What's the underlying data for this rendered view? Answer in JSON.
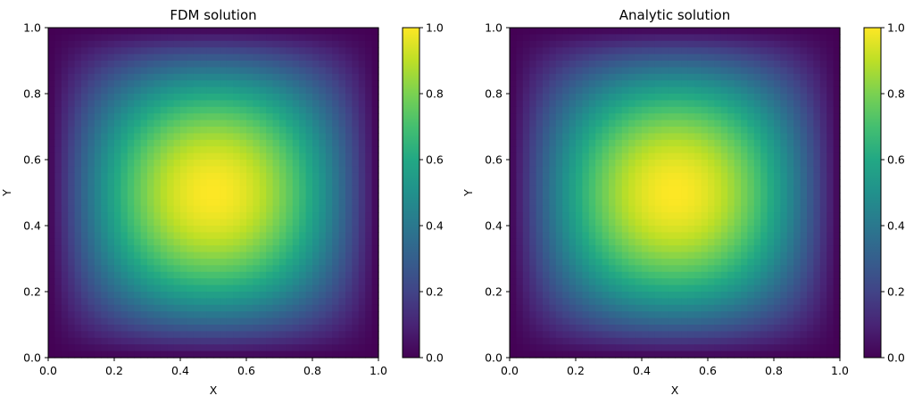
{
  "chart_data": [
    {
      "type": "heatmap",
      "title": "FDM solution",
      "xlabel": "X",
      "ylabel": "Y",
      "xlim": [
        0.0,
        1.0
      ],
      "ylim": [
        0.0,
        1.0
      ],
      "x_ticks": [
        "0.0",
        "0.2",
        "0.4",
        "0.6",
        "0.8",
        "1.0"
      ],
      "y_ticks": [
        "0.0",
        "0.2",
        "0.4",
        "0.6",
        "0.8",
        "1.0"
      ],
      "function": "sin(pi*x)*sin(pi*y)",
      "colormap": "viridis",
      "value_range": [
        0.0,
        1.0
      ],
      "colorbar_ticks": [
        "0.0",
        "0.2",
        "0.4",
        "0.6",
        "0.8",
        "1.0"
      ]
    },
    {
      "type": "heatmap",
      "title": "Analytic solution",
      "xlabel": "X",
      "ylabel": "Y",
      "xlim": [
        0.0,
        1.0
      ],
      "ylim": [
        0.0,
        1.0
      ],
      "x_ticks": [
        "0.0",
        "0.2",
        "0.4",
        "0.6",
        "0.8",
        "1.0"
      ],
      "y_ticks": [
        "0.0",
        "0.2",
        "0.4",
        "0.6",
        "0.8",
        "1.0"
      ],
      "function": "sin(pi*x)*sin(pi*y)",
      "colormap": "viridis",
      "value_range": [
        0.0,
        1.0
      ],
      "colorbar_ticks": [
        "0.0",
        "0.2",
        "0.4",
        "0.6",
        "0.8",
        "1.0"
      ]
    }
  ]
}
